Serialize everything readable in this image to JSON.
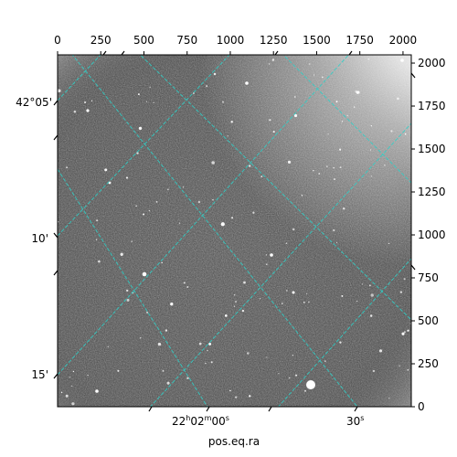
{
  "image": {
    "description_kind": "astronomical star field (grayscale)",
    "colormap": "gray"
  },
  "axes": {
    "x_pixel_ticks": [
      "0",
      "250",
      "500",
      "750",
      "1000",
      "1250",
      "1500",
      "1750",
      "2000"
    ],
    "y_pixel_ticks": [
      "0",
      "250",
      "500",
      "750",
      "1000",
      "1250",
      "1500",
      "1750",
      "2000"
    ],
    "pixel_range": [
      0,
      2048
    ],
    "dec_ticks": [
      "42°05'",
      "10'",
      "15'"
    ],
    "ra_ticks": [
      {
        "hours": "22",
        "h": "h",
        "minutes": "02",
        "m": "m",
        "seconds": "00",
        "s": "s"
      },
      {
        "seconds": "30",
        "s": "s"
      }
    ],
    "xlabel": "pos.eq.ra"
  },
  "colors": {
    "grid": "#2fd0c8",
    "background": "#ffffff",
    "frame": "#000000"
  }
}
